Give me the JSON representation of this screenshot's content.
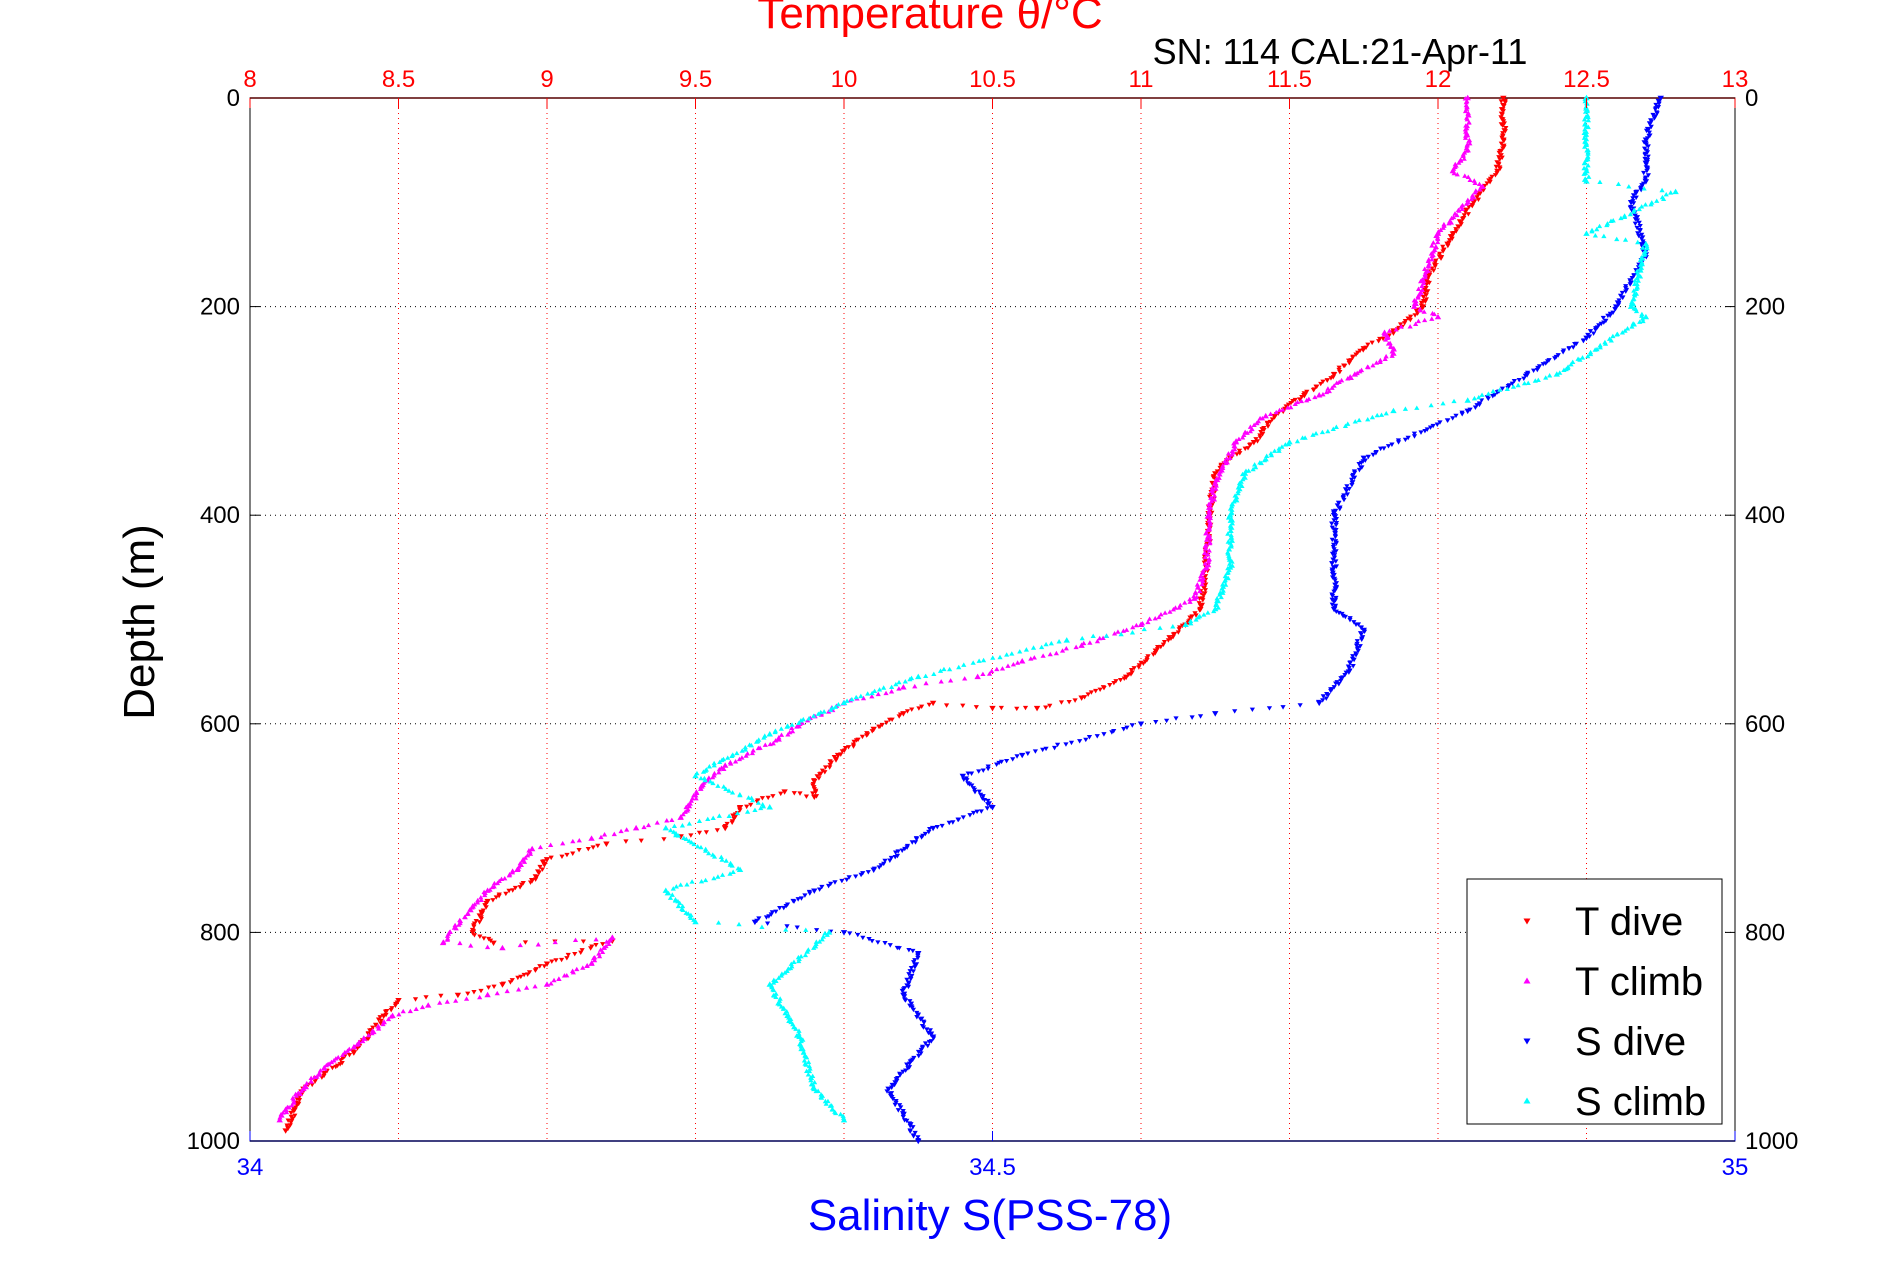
{
  "chart_data": {
    "type": "scatter",
    "title": "Temperature θ/°C",
    "subtitle": "SN: 114  CAL:21-Apr-11",
    "ylabel": "Depth (m)",
    "xlabel_bottom": "Salinity S(PSS-78)",
    "temp_axis": {
      "range": [
        8,
        13
      ],
      "ticks": [
        "8",
        "8.5",
        "9",
        "9.5",
        "10",
        "10.5",
        "11",
        "11.5",
        "12",
        "12.5",
        "13"
      ],
      "tick_values": [
        8,
        8.5,
        9,
        9.5,
        10,
        10.5,
        11,
        11.5,
        12,
        12.5,
        13
      ]
    },
    "salinity_axis": {
      "range": [
        34,
        35
      ],
      "ticks": [
        "34",
        "34.5",
        "35"
      ],
      "tick_values": [
        34,
        34.5,
        35
      ]
    },
    "depth_axis": {
      "range": [
        0,
        1000
      ],
      "reversed": true,
      "ticks": [
        "0",
        "200",
        "400",
        "600",
        "800",
        "1000"
      ],
      "tick_values": [
        0,
        200,
        400,
        600,
        800,
        1000
      ]
    },
    "grid": true,
    "legend_position": "bottom-right",
    "colors": {
      "temp": "#ff0000",
      "salinity": "#0000ff"
    },
    "series": [
      {
        "name": "T dive",
        "axis": "temp",
        "color": "#ff0000",
        "marker": "triangle-down",
        "points": [
          [
            12.22,
            0
          ],
          [
            12.22,
            40
          ],
          [
            12.2,
            70
          ],
          [
            12.12,
            100
          ],
          [
            12.05,
            130
          ],
          [
            11.97,
            170
          ],
          [
            11.95,
            200
          ],
          [
            11.85,
            225
          ],
          [
            11.75,
            240
          ],
          [
            11.65,
            265
          ],
          [
            11.55,
            285
          ],
          [
            11.45,
            305
          ],
          [
            11.38,
            330
          ],
          [
            11.3,
            345
          ],
          [
            11.25,
            360
          ],
          [
            11.23,
            400
          ],
          [
            11.22,
            450
          ],
          [
            11.2,
            490
          ],
          [
            11.15,
            505
          ],
          [
            11.05,
            530
          ],
          [
            10.95,
            555
          ],
          [
            10.8,
            575
          ],
          [
            10.65,
            585
          ],
          [
            10.5,
            585
          ],
          [
            10.3,
            580
          ],
          [
            10.2,
            590
          ],
          [
            10.1,
            605
          ],
          [
            9.98,
            630
          ],
          [
            9.9,
            655
          ],
          [
            9.9,
            670
          ],
          [
            9.8,
            665
          ],
          [
            9.65,
            680
          ],
          [
            9.6,
            700
          ],
          [
            9.45,
            708
          ],
          [
            9.2,
            715
          ],
          [
            9.0,
            730
          ],
          [
            8.95,
            750
          ],
          [
            8.8,
            770
          ],
          [
            8.75,
            800
          ],
          [
            8.82,
            810
          ],
          [
            9.22,
            808
          ],
          [
            9.0,
            830
          ],
          [
            8.85,
            850
          ],
          [
            8.7,
            860
          ],
          [
            8.5,
            865
          ],
          [
            8.45,
            880
          ],
          [
            8.35,
            915
          ],
          [
            8.25,
            935
          ],
          [
            8.18,
            950
          ],
          [
            8.15,
            970
          ],
          [
            8.12,
            990
          ]
        ]
      },
      {
        "name": "T climb",
        "axis": "temp",
        "color": "#ff00ff",
        "marker": "triangle-up",
        "points": [
          [
            12.1,
            0
          ],
          [
            12.1,
            50
          ],
          [
            12.05,
            70
          ],
          [
            12.15,
            85
          ],
          [
            12.0,
            130
          ],
          [
            11.95,
            175
          ],
          [
            11.92,
            200
          ],
          [
            12.0,
            210
          ],
          [
            11.82,
            225
          ],
          [
            11.85,
            245
          ],
          [
            11.72,
            265
          ],
          [
            11.6,
            285
          ],
          [
            11.42,
            305
          ],
          [
            11.32,
            330
          ],
          [
            11.25,
            370
          ],
          [
            11.23,
            400
          ],
          [
            11.22,
            450
          ],
          [
            11.18,
            480
          ],
          [
            11.0,
            505
          ],
          [
            10.8,
            525
          ],
          [
            10.6,
            540
          ],
          [
            10.45,
            555
          ],
          [
            10.2,
            565
          ],
          [
            10.0,
            580
          ],
          [
            9.85,
            600
          ],
          [
            9.78,
            615
          ],
          [
            9.6,
            640
          ],
          [
            9.52,
            660
          ],
          [
            9.45,
            690
          ],
          [
            9.3,
            700
          ],
          [
            9.15,
            710
          ],
          [
            8.95,
            720
          ],
          [
            8.9,
            740
          ],
          [
            8.8,
            760
          ],
          [
            8.75,
            775
          ],
          [
            8.65,
            810
          ],
          [
            8.85,
            815
          ],
          [
            9.22,
            805
          ],
          [
            9.15,
            830
          ],
          [
            9.0,
            850
          ],
          [
            8.8,
            860
          ],
          [
            8.6,
            870
          ],
          [
            8.48,
            880
          ],
          [
            8.35,
            910
          ],
          [
            8.25,
            930
          ],
          [
            8.18,
            950
          ],
          [
            8.12,
            970
          ],
          [
            8.1,
            980
          ]
        ]
      },
      {
        "name": "S dive",
        "axis": "salinity",
        "color": "#0000ff",
        "marker": "triangle-down",
        "points": [
          [
            34.95,
            0
          ],
          [
            34.94,
            40
          ],
          [
            34.94,
            80
          ],
          [
            34.93,
            100
          ],
          [
            34.94,
            150
          ],
          [
            34.92,
            200
          ],
          [
            34.9,
            230
          ],
          [
            34.86,
            265
          ],
          [
            34.82,
            300
          ],
          [
            34.75,
            345
          ],
          [
            34.73,
            400
          ],
          [
            34.73,
            450
          ],
          [
            34.73,
            490
          ],
          [
            34.75,
            510
          ],
          [
            34.74,
            550
          ],
          [
            34.72,
            580
          ],
          [
            34.65,
            590
          ],
          [
            34.6,
            600
          ],
          [
            34.52,
            630
          ],
          [
            34.48,
            650
          ],
          [
            34.5,
            680
          ],
          [
            34.46,
            700
          ],
          [
            34.42,
            740
          ],
          [
            34.38,
            760
          ],
          [
            34.34,
            790
          ],
          [
            34.4,
            800
          ],
          [
            34.45,
            820
          ],
          [
            34.44,
            860
          ],
          [
            34.46,
            900
          ],
          [
            34.43,
            950
          ],
          [
            34.45,
            1000
          ]
        ]
      },
      {
        "name": "S climb",
        "axis": "salinity",
        "color": "#00ffff",
        "marker": "triangle-up",
        "points": [
          [
            34.9,
            0
          ],
          [
            34.9,
            70
          ],
          [
            34.9,
            80
          ],
          [
            34.96,
            90
          ],
          [
            34.9,
            130
          ],
          [
            34.94,
            140
          ],
          [
            34.93,
            200
          ],
          [
            34.94,
            210
          ],
          [
            34.88,
            265
          ],
          [
            34.82,
            290
          ],
          [
            34.77,
            300
          ],
          [
            34.7,
            330
          ],
          [
            34.67,
            360
          ],
          [
            34.66,
            400
          ],
          [
            34.66,
            450
          ],
          [
            34.65,
            490
          ],
          [
            34.63,
            505
          ],
          [
            34.55,
            520
          ],
          [
            34.45,
            555
          ],
          [
            34.4,
            580
          ],
          [
            34.35,
            610
          ],
          [
            34.3,
            650
          ],
          [
            34.35,
            680
          ],
          [
            34.28,
            700
          ],
          [
            34.33,
            740
          ],
          [
            34.28,
            760
          ],
          [
            34.3,
            790
          ],
          [
            34.39,
            800
          ],
          [
            34.35,
            850
          ],
          [
            34.37,
            900
          ],
          [
            34.38,
            950
          ],
          [
            34.4,
            980
          ]
        ]
      }
    ]
  }
}
